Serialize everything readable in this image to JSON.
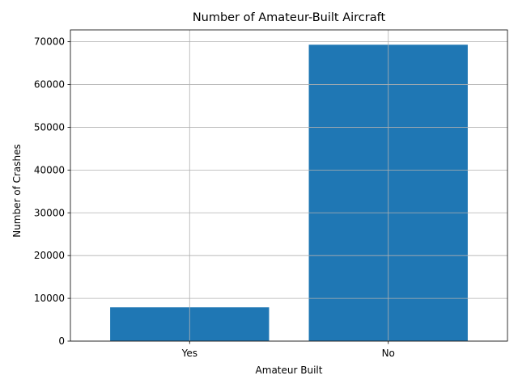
{
  "chart_data": {
    "type": "bar",
    "title": "Number of Amateur-Built Aircraft",
    "xlabel": "Amateur Built",
    "ylabel": "Number of Crashes",
    "categories": [
      "Yes",
      "No"
    ],
    "values": [
      7900,
      69300
    ],
    "ylim": [
      0,
      72765
    ],
    "yticks": [
      0,
      10000,
      20000,
      30000,
      40000,
      50000,
      60000,
      70000
    ],
    "ytick_labels": [
      "0",
      "10000",
      "20000",
      "30000",
      "40000",
      "50000",
      "60000",
      "70000"
    ],
    "grid": true,
    "bar_color": "#1f77b4",
    "legend": "none"
  }
}
